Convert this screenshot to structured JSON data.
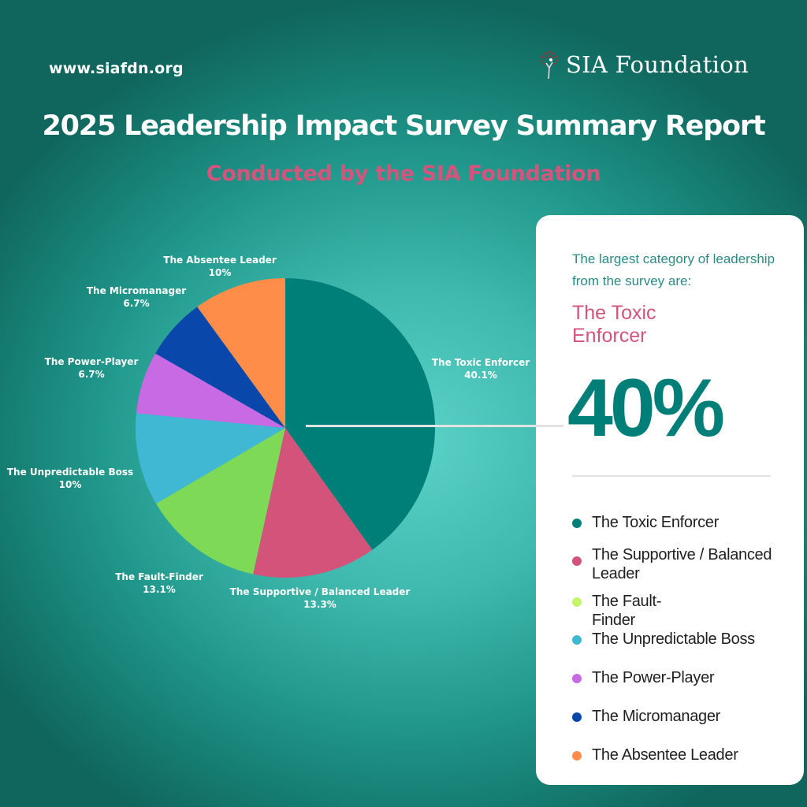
{
  "header": {
    "url": "www.siafdn.org",
    "brand_name": "SIA Foundation",
    "logo_icon": "tree-person-icon",
    "title": "2025 Leadership Impact Survey Summary Report",
    "subtitle": "Conducted by the SIA Foundation"
  },
  "card": {
    "intro": "The largest category of leadership from the survey are:",
    "category": "The Toxic Enforcer",
    "percent": "40%",
    "legend": [
      {
        "label": "The Toxic Enforcer",
        "color": "#007f78"
      },
      {
        "label": "The Supportive / Balanced Leader",
        "color": "#d4537a"
      },
      {
        "label": "The Fault-Finder",
        "color": "#c4f56b"
      },
      {
        "label": "The Unpredictable Boss",
        "color": "#40b8d4"
      },
      {
        "label": "The Power-Player",
        "color": "#c76ae3"
      },
      {
        "label": "The Micromanager",
        "color": "#0a47ab"
      },
      {
        "label": "The Absentee Leader",
        "color": "#fd8d49"
      }
    ]
  },
  "chart_data": {
    "type": "pie",
    "title": "2025 Leadership Impact Survey Summary Report",
    "start_angle": "12 o'clock, clockwise",
    "slices": [
      {
        "label": "The Toxic Enforcer",
        "value": 40.1,
        "display": "40.1%",
        "color": "#007f78"
      },
      {
        "label": "The Supportive / Balanced Leader",
        "value": 13.3,
        "display": "13.3%",
        "color": "#d4537a"
      },
      {
        "label": "The Fault-Finder",
        "value": 13.1,
        "display": "13.1%",
        "color": "#7ed957"
      },
      {
        "label": "The Unpredictable Boss",
        "value": 10,
        "display": "10%",
        "color": "#40b8d4"
      },
      {
        "label": "The Power-Player",
        "value": 6.7,
        "display": "6.7%",
        "color": "#c76ae3"
      },
      {
        "label": "The Micromanager",
        "value": 6.7,
        "display": "6.7%",
        "color": "#0a47ab"
      },
      {
        "label": "The Absentee Leader",
        "value": 10,
        "display": "10%",
        "color": "#fd8d49"
      }
    ],
    "legend_position": "right"
  }
}
